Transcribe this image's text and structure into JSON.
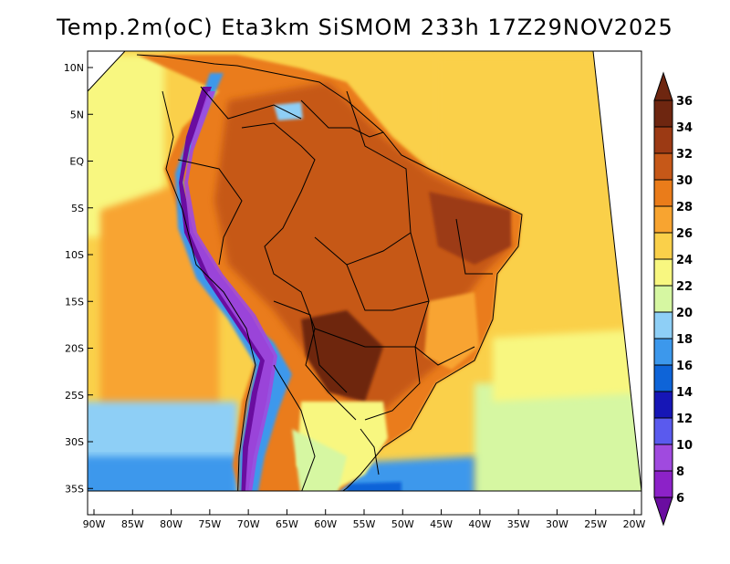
{
  "title": "Temp.2m(oC) Eta3km SiSMOM 233h 17Z29NOV2025",
  "variable": "2m temperature",
  "units": "oC",
  "latitude_ticks": [
    {
      "value": 10,
      "label": "10N"
    },
    {
      "value": 5,
      "label": "5N"
    },
    {
      "value": 0,
      "label": "EQ"
    },
    {
      "value": -5,
      "label": "5S"
    },
    {
      "value": -10,
      "label": "10S"
    },
    {
      "value": -15,
      "label": "15S"
    },
    {
      "value": -20,
      "label": "20S"
    },
    {
      "value": -25,
      "label": "25S"
    },
    {
      "value": -30,
      "label": "30S"
    },
    {
      "value": -35,
      "label": "35S"
    }
  ],
  "longitude_ticks": [
    {
      "value": -90,
      "label": "90W"
    },
    {
      "value": -85,
      "label": "85W"
    },
    {
      "value": -80,
      "label": "80W"
    },
    {
      "value": -75,
      "label": "75W"
    },
    {
      "value": -70,
      "label": "70W"
    },
    {
      "value": -65,
      "label": "65W"
    },
    {
      "value": -60,
      "label": "60W"
    },
    {
      "value": -55,
      "label": "55W"
    },
    {
      "value": -50,
      "label": "50W"
    },
    {
      "value": -45,
      "label": "45W"
    },
    {
      "value": -40,
      "label": "40W"
    },
    {
      "value": -35,
      "label": "35W"
    },
    {
      "value": -30,
      "label": "30W"
    },
    {
      "value": -25,
      "label": "25W"
    },
    {
      "value": -20,
      "label": "20W"
    }
  ],
  "colorbar": [
    {
      "value": 6,
      "label": "6",
      "color": "#6a0da0"
    },
    {
      "value": 8,
      "label": "8",
      "color": "#8c22c8"
    },
    {
      "value": 10,
      "label": "10",
      "color": "#a04adf"
    },
    {
      "value": 12,
      "label": "12",
      "color": "#5a5aee"
    },
    {
      "value": 14,
      "label": "14",
      "color": "#1616b6"
    },
    {
      "value": 16,
      "label": "16",
      "color": "#0e64d8"
    },
    {
      "value": 18,
      "label": "18",
      "color": "#3c98ec"
    },
    {
      "value": 20,
      "label": "20",
      "color": "#8ecff6"
    },
    {
      "value": 22,
      "label": "22",
      "color": "#d6f7a2"
    },
    {
      "value": 24,
      "label": "24",
      "color": "#f8f780"
    },
    {
      "value": 26,
      "label": "26",
      "color": "#fad04a"
    },
    {
      "value": 28,
      "label": "28",
      "color": "#f8a430"
    },
    {
      "value": 30,
      "label": "30",
      "color": "#ea7c1a"
    },
    {
      "value": 32,
      "label": "32",
      "color": "#c65818"
    },
    {
      "value": 34,
      "label": "34",
      "color": "#9c3a14"
    },
    {
      "value": 36,
      "label": "36",
      "color": "#6e2610"
    }
  ],
  "colors": {
    "frame": "#000000",
    "border_lines": "#000000"
  }
}
